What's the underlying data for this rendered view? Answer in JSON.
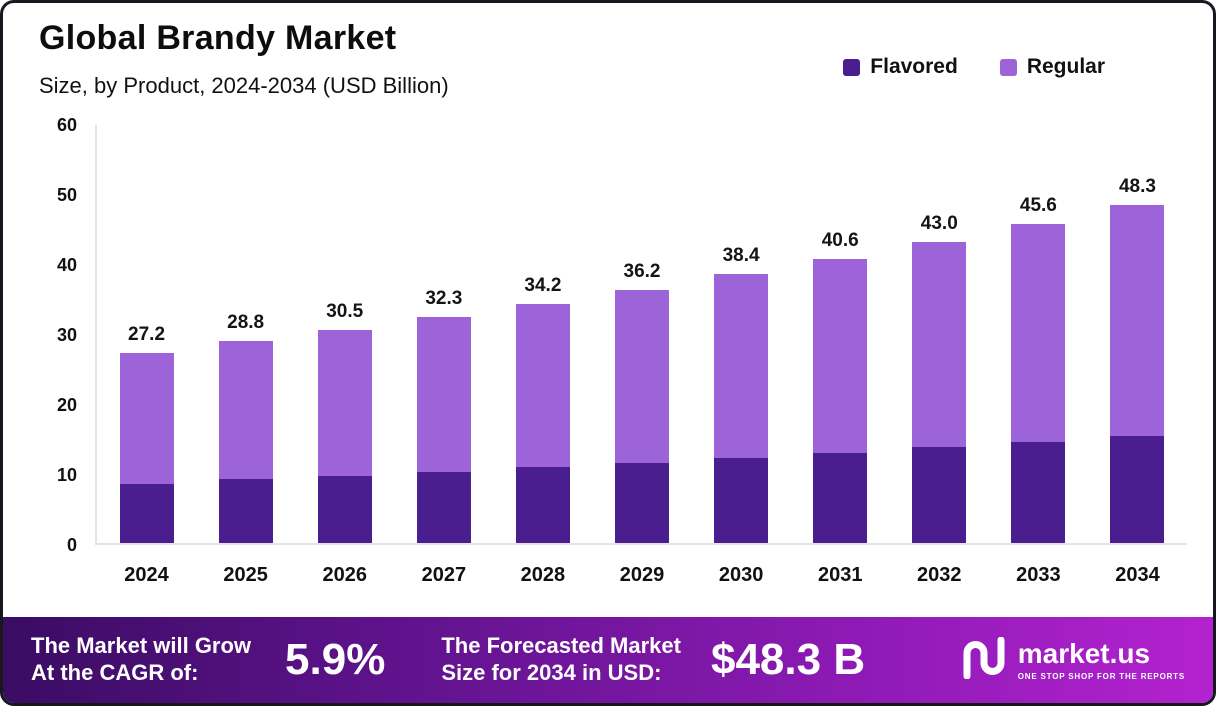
{
  "header": {
    "title": "Global Brandy Market",
    "subtitle": "Size, by Product, 2024-2034 (USD Billion)"
  },
  "legend": {
    "items": [
      {
        "label": "Flavored",
        "color": "#4b1e8f"
      },
      {
        "label": "Regular",
        "color": "#9d63d8"
      }
    ]
  },
  "chart_data": {
    "type": "bar",
    "stacked": true,
    "title": "Global Brandy Market Size, by Product, 2024-2034 (USD Billion)",
    "categories": [
      "2024",
      "2025",
      "2026",
      "2027",
      "2028",
      "2029",
      "2030",
      "2031",
      "2032",
      "2033",
      "2034"
    ],
    "series": [
      {
        "name": "Flavored",
        "color": "#4b1e8f",
        "values": [
          8.5,
          9.1,
          9.6,
          10.1,
          10.8,
          11.4,
          12.1,
          12.9,
          13.7,
          14.4,
          15.3
        ]
      },
      {
        "name": "Regular",
        "color": "#9d63d8",
        "values": [
          18.7,
          19.7,
          20.9,
          22.2,
          23.4,
          24.8,
          26.3,
          27.7,
          29.3,
          31.2,
          33.0
        ]
      }
    ],
    "totals": [
      27.2,
      28.8,
      30.5,
      32.3,
      34.2,
      36.2,
      38.4,
      40.6,
      43.0,
      45.6,
      48.3
    ],
    "total_labels": [
      "27.2",
      "28.8",
      "30.5",
      "32.3",
      "34.2",
      "36.2",
      "38.4",
      "40.6",
      "43.0",
      "45.6",
      "48.3"
    ],
    "xlabel": "",
    "ylabel": "",
    "ylim": [
      0,
      60
    ],
    "yticks": [
      0,
      10,
      20,
      30,
      40,
      50,
      60
    ],
    "grid": false,
    "legend_position": "top-right"
  },
  "footer": {
    "cagr_label_line1": "The Market will Grow",
    "cagr_label_line2": "At the CAGR of:",
    "cagr_value": "5.9%",
    "forecast_label_line1": "The Forecasted Market",
    "forecast_label_line2": "Size for 2034 in USD:",
    "forecast_value": "$48.3 B",
    "brand": {
      "name": "market.us",
      "tagline": "One Stop Shop for the Reports"
    }
  }
}
